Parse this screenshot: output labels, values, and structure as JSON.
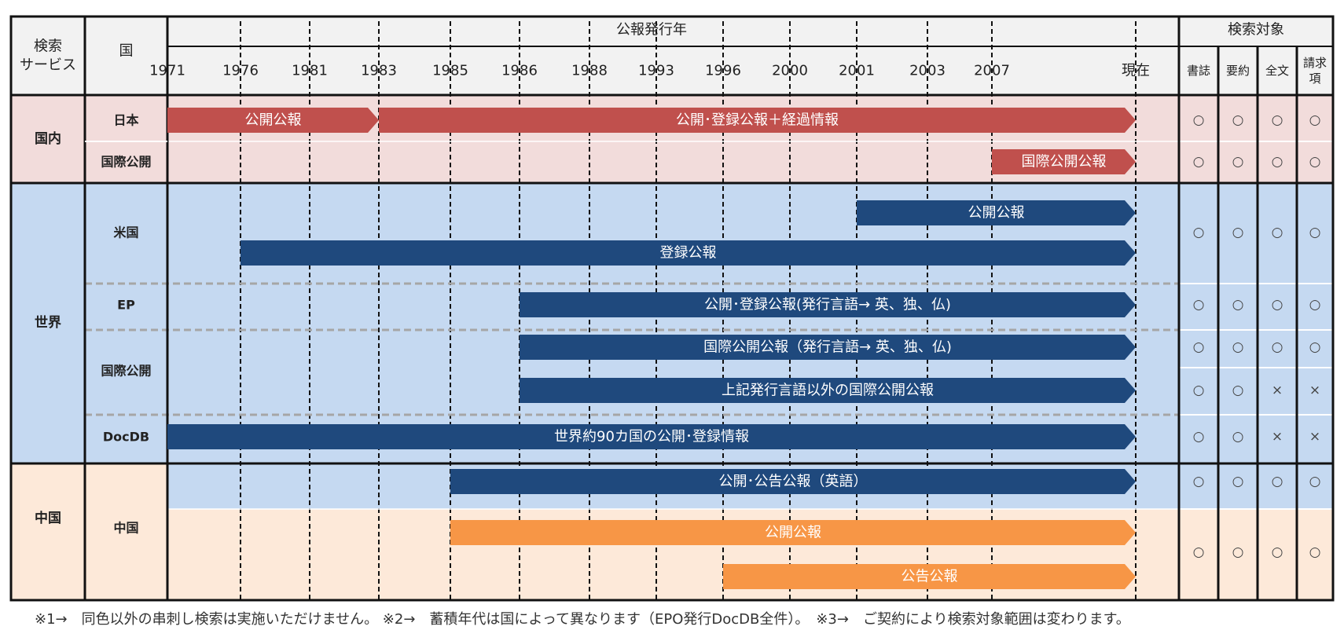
{
  "header": {
    "service_label": "検索\nサービス",
    "country_label": "国",
    "period_title": "公報発行年",
    "years": [
      "1971",
      "1976",
      "1981",
      "1983",
      "1985",
      "1986",
      "1988",
      "1993",
      "1996",
      "2000",
      "2001",
      "2003",
      "2007"
    ],
    "present_label": "現在",
    "target_title": "検索対象",
    "target_columns": [
      "書誌",
      "要約",
      "全文",
      "請求\n項"
    ]
  },
  "sections": [
    {
      "name": "国内",
      "color": "#f2dcdb"
    },
    {
      "name": "世界",
      "color": "#c5d9f1"
    },
    {
      "name": "中国",
      "color": "#fde9d9"
    }
  ],
  "row_labels": [
    "日本",
    "国際公開",
    "米国",
    "EP",
    "国際公開",
    "DocDB",
    "中国"
  ],
  "bars": [
    {
      "label": "公開公報",
      "start": "1971",
      "end": "1983",
      "color": "#c0504d"
    },
    {
      "label": "公開･登録公報＋経過情報",
      "start": "1983",
      "end": "現在",
      "color": "#c0504d"
    },
    {
      "label": "国際公開公報",
      "start": "2007",
      "end": "現在",
      "color": "#c0504d"
    },
    {
      "label": "公開公報",
      "start": "2001",
      "end": "現在",
      "color": "#1f497d"
    },
    {
      "label": "登録公報",
      "start": "1976",
      "end": "現在",
      "color": "#1f497d"
    },
    {
      "label": "公開･登録公報(発行言語→ 英、独、仏)",
      "start": "1986",
      "end": "現在",
      "color": "#1f497d"
    },
    {
      "label": "国際公開公報（発行言語→ 英、独、仏)",
      "start": "1986",
      "end": "現在",
      "color": "#1f497d"
    },
    {
      "label": "上記発行言語以外の国際公開公報",
      "start": "1986",
      "end": "現在",
      "color": "#1f497d"
    },
    {
      "label": "世界約90カ国の公開･登録情報",
      "start": "1971",
      "end": "現在",
      "color": "#1f497d"
    },
    {
      "label": "公開･公告公報（英語）",
      "start": "1985",
      "end": "現在",
      "color": "#1f497d"
    },
    {
      "label": "公開公報",
      "start": "1985",
      "end": "現在",
      "color": "#f79646"
    },
    {
      "label": "公告公報",
      "start": "1996",
      "end": "現在",
      "color": "#f79646"
    }
  ],
  "targets": [
    [
      "○",
      "○",
      "○",
      "○"
    ],
    [
      "○",
      "○",
      "○",
      "○"
    ],
    [
      "○",
      "○",
      "○",
      "○"
    ],
    [
      "○",
      "○",
      "○",
      "○"
    ],
    [
      "○",
      "○",
      "○",
      "○"
    ],
    [
      "○",
      "○",
      "×",
      "×"
    ],
    [
      "○",
      "○",
      "×",
      "×"
    ],
    [
      "○",
      "○",
      "○",
      "○"
    ],
    [
      "○",
      "○",
      "○",
      "○"
    ]
  ],
  "footnote": "※1→　同色以外の串刺し検索は実施いただけません。 ※2→　蓄積年代は国によって異なります（EPO発行DocDB全件）。　※3→　ご契約により検索対象範囲は変わります。"
}
